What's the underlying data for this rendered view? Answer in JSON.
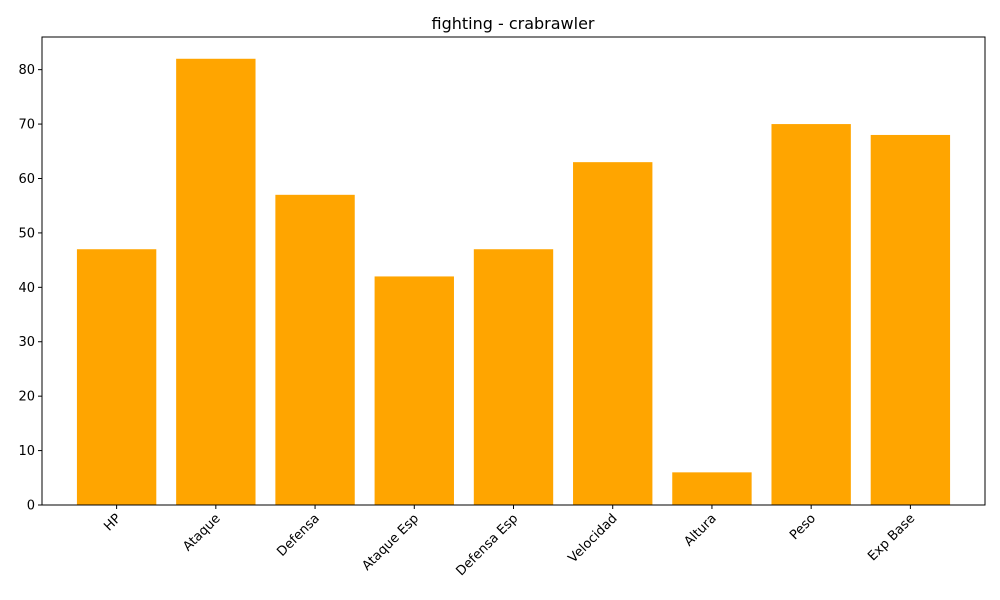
{
  "chart_data": {
    "type": "bar",
    "title": "fighting - crabrawler",
    "xlabel": "",
    "ylabel": "",
    "categories": [
      "HP",
      "Ataque",
      "Defensa",
      "Ataque Esp",
      "Defensa Esp",
      "Velocidad",
      "Altura",
      "Peso",
      "Exp Base"
    ],
    "values": [
      47,
      82,
      57,
      42,
      47,
      63,
      6,
      70,
      68
    ],
    "ylim": [
      0,
      86
    ],
    "yticks": [
      0,
      10,
      20,
      30,
      40,
      50,
      60,
      70,
      80
    ],
    "bar_color": "#ffa500",
    "grid": false,
    "legend": "none"
  }
}
